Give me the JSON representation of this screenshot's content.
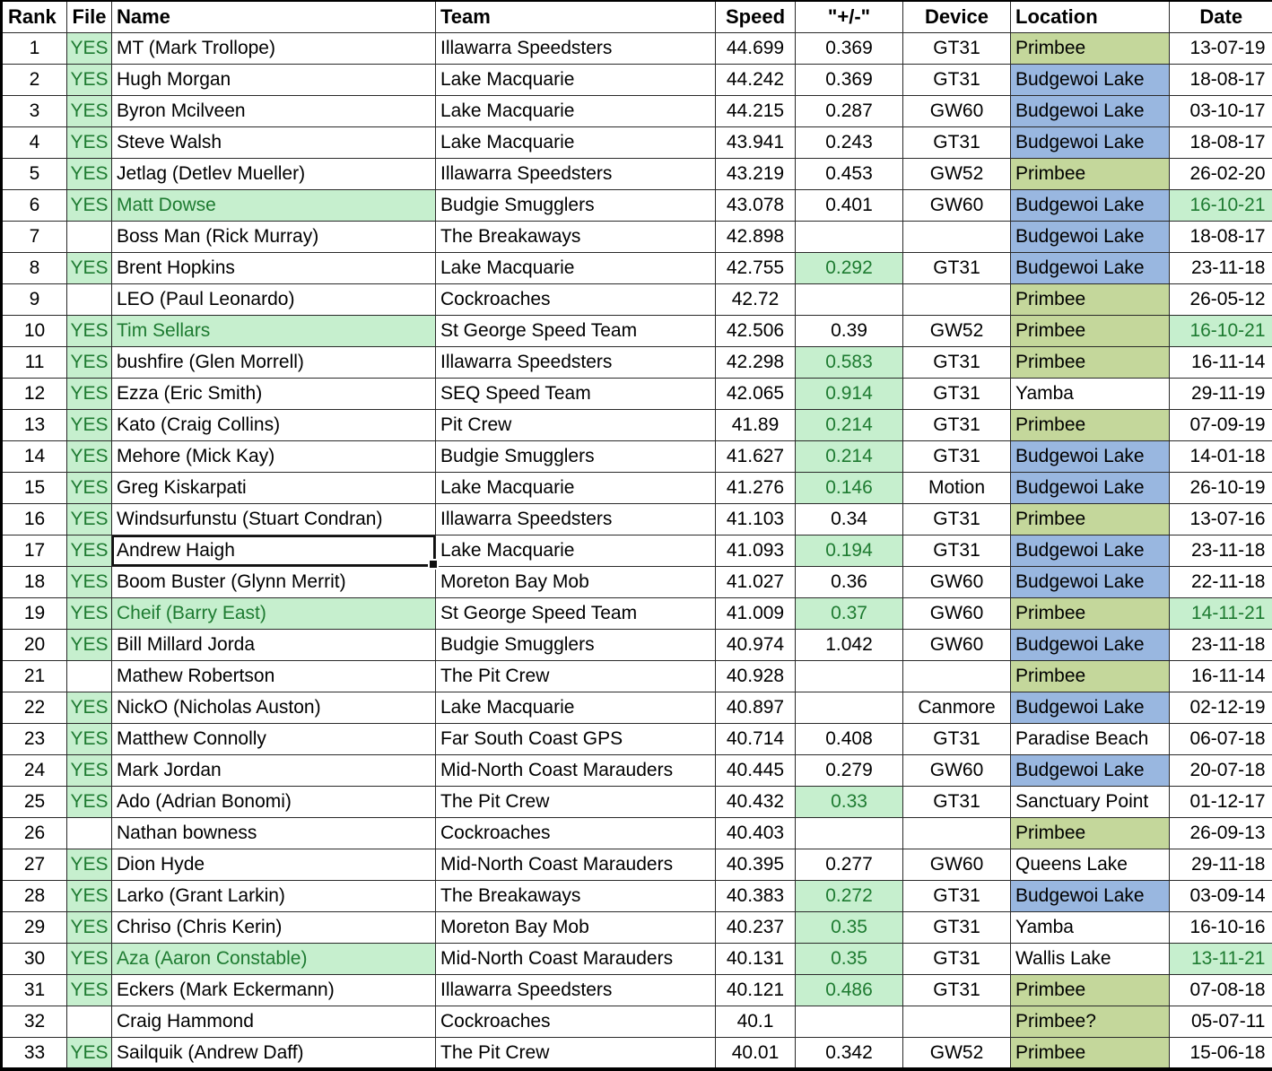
{
  "colors": {
    "grid_line": "#2a2a2a",
    "highlight_green_background": "#c6efce",
    "highlight_green_text": "#1e7b31",
    "location_olive_background": "#c4d79b",
    "location_blue_background": "#99b7e0"
  },
  "selection": {
    "selected_row_rank": "17",
    "selected_column": "name",
    "selected_value": "Andrew Haigh"
  },
  "table": {
    "columns": [
      {
        "key": "rank",
        "label": "Rank"
      },
      {
        "key": "file",
        "label": "File"
      },
      {
        "key": "name",
        "label": "Name"
      },
      {
        "key": "team",
        "label": "Team"
      },
      {
        "key": "speed",
        "label": "Speed"
      },
      {
        "key": "plusminus",
        "label": "\"+/-\""
      },
      {
        "key": "device",
        "label": "Device"
      },
      {
        "key": "location",
        "label": "Location"
      },
      {
        "key": "date",
        "label": "Date"
      }
    ],
    "rows": [
      {
        "rank": "1",
        "file": "YES",
        "name": "MT (Mark Trollope)",
        "team": "Illawarra Speedsters",
        "speed": "44.699",
        "plusminus": "0.369",
        "device": "GT31",
        "location": "Primbee",
        "location_color": "olive",
        "date": "13-07-19"
      },
      {
        "rank": "2",
        "file": "YES",
        "name": "Hugh Morgan",
        "team": "Lake Macquarie",
        "speed": "44.242",
        "plusminus": "0.369",
        "device": "GT31",
        "location": "Budgewoi Lake",
        "location_color": "blue",
        "date": "18-08-17"
      },
      {
        "rank": "3",
        "file": "YES",
        "name": "Byron Mcilveen",
        "team": "Lake Macquarie",
        "speed": "44.215",
        "plusminus": "0.287",
        "device": "GW60",
        "location": "Budgewoi Lake",
        "location_color": "blue",
        "date": "03-10-17"
      },
      {
        "rank": "4",
        "file": "YES",
        "name": "Steve Walsh",
        "team": "Lake Macquarie",
        "speed": "43.941",
        "plusminus": "0.243",
        "device": "GT31",
        "location": "Budgewoi Lake",
        "location_color": "blue",
        "date": "18-08-17"
      },
      {
        "rank": "5",
        "file": "YES",
        "name": "Jetlag (Detlev Mueller)",
        "team": "Illawarra Speedsters",
        "speed": "43.219",
        "plusminus": "0.453",
        "device": "GW52",
        "location": "Primbee",
        "location_color": "olive",
        "date": "26-02-20"
      },
      {
        "rank": "6",
        "file": "YES",
        "name": "Matt Dowse",
        "team": "Budgie Smugglers",
        "speed": "43.078",
        "plusminus": "0.401",
        "device": "GW60",
        "location": "Budgewoi Lake",
        "location_color": "blue",
        "date": "16-10-21",
        "name_highlight": true,
        "date_highlight": true
      },
      {
        "rank": "7",
        "file": "",
        "name": "Boss Man (Rick Murray)",
        "team": "The Breakaways",
        "speed": "42.898",
        "plusminus": "",
        "device": "",
        "location": "Budgewoi Lake",
        "location_color": "blue",
        "date": "18-08-17"
      },
      {
        "rank": "8",
        "file": "YES",
        "name": "Brent Hopkins",
        "team": "Lake Macquarie",
        "speed": "42.755",
        "plusminus": "0.292",
        "device": "GT31",
        "location": "Budgewoi Lake",
        "location_color": "blue",
        "date": "23-11-18",
        "pm_highlight": true
      },
      {
        "rank": "9",
        "file": "",
        "name": "LEO (Paul Leonardo)",
        "team": "Cockroaches",
        "speed": "42.72",
        "plusminus": "",
        "device": "",
        "location": "Primbee",
        "location_color": "olive",
        "date": "26-05-12"
      },
      {
        "rank": "10",
        "file": "YES",
        "name": "Tim Sellars",
        "team": "St George Speed Team",
        "speed": "42.506",
        "plusminus": "0.39",
        "device": "GW52",
        "location": "Primbee",
        "location_color": "olive",
        "date": "16-10-21",
        "name_highlight": true,
        "date_highlight": true
      },
      {
        "rank": "11",
        "file": "YES",
        "name": "bushfire (Glen Morrell)",
        "team": "Illawarra Speedsters",
        "speed": "42.298",
        "plusminus": "0.583",
        "device": "GT31",
        "location": "Primbee",
        "location_color": "olive",
        "date": "16-11-14",
        "pm_highlight": true
      },
      {
        "rank": "12",
        "file": "YES",
        "name": "Ezza (Eric Smith)",
        "team": "SEQ Speed Team",
        "speed": "42.065",
        "plusminus": "0.914",
        "device": "GT31",
        "location": "Yamba",
        "location_color": "none",
        "date": "29-11-19",
        "pm_highlight": true
      },
      {
        "rank": "13",
        "file": "YES",
        "name": "Kato (Craig Collins)",
        "team": "Pit Crew",
        "speed": "41.89",
        "plusminus": "0.214",
        "device": "GT31",
        "location": "Primbee",
        "location_color": "olive",
        "date": "07-09-19",
        "pm_highlight": true
      },
      {
        "rank": "14",
        "file": "YES",
        "name": "Mehore (Mick Kay)",
        "team": "Budgie Smugglers",
        "speed": "41.627",
        "plusminus": "0.214",
        "device": "GT31",
        "location": "Budgewoi Lake",
        "location_color": "blue",
        "date": "14-01-18",
        "pm_highlight": true
      },
      {
        "rank": "15",
        "file": "YES",
        "name": "Greg Kiskarpati",
        "team": "Lake Macquarie",
        "speed": "41.276",
        "plusminus": "0.146",
        "device": "Motion",
        "location": "Budgewoi Lake",
        "location_color": "blue",
        "date": "26-10-19",
        "pm_highlight": true
      },
      {
        "rank": "16",
        "file": "YES",
        "name": "Windsurfunstu (Stuart Condran)",
        "team": "Illawarra Speedsters",
        "speed": "41.103",
        "plusminus": "0.34",
        "device": "GT31",
        "location": "Primbee",
        "location_color": "olive",
        "date": "13-07-16"
      },
      {
        "rank": "17",
        "file": "YES",
        "name": "Andrew Haigh",
        "team": "Lake Macquarie",
        "speed": "41.093",
        "plusminus": "0.194",
        "device": "GT31",
        "location": "Budgewoi Lake",
        "location_color": "blue",
        "date": "23-11-18",
        "pm_highlight": true,
        "selected": true
      },
      {
        "rank": "18",
        "file": "YES",
        "name": "Boom Buster (Glynn Merrit)",
        "team": "Moreton Bay Mob",
        "speed": "41.027",
        "plusminus": "0.36",
        "device": "GW60",
        "location": "Budgewoi Lake",
        "location_color": "blue",
        "date": "22-11-18"
      },
      {
        "rank": "19",
        "file": "YES",
        "name": "Cheif (Barry East)",
        "team": "St George Speed Team",
        "speed": "41.009",
        "plusminus": "0.37",
        "device": "GW60",
        "location": "Primbee",
        "location_color": "olive",
        "date": "14-11-21",
        "name_highlight": true,
        "pm_highlight": true,
        "date_highlight": true
      },
      {
        "rank": "20",
        "file": "YES",
        "name": "Bill Millard Jorda",
        "team": "Budgie Smugglers",
        "speed": "40.974",
        "plusminus": "1.042",
        "device": "GW60",
        "location": "Budgewoi Lake",
        "location_color": "blue",
        "date": "23-11-18"
      },
      {
        "rank": "21",
        "file": "",
        "name": "Mathew Robertson",
        "team": "The Pit Crew",
        "speed": "40.928",
        "plusminus": "",
        "device": "",
        "location": "Primbee",
        "location_color": "olive",
        "date": "16-11-14"
      },
      {
        "rank": "22",
        "file": "YES",
        "name": "NickO (Nicholas Auston)",
        "team": "Lake Macquarie",
        "speed": "40.897",
        "plusminus": "",
        "device": "Canmore",
        "location": "Budgewoi Lake",
        "location_color": "blue",
        "date": "02-12-19"
      },
      {
        "rank": "23",
        "file": "YES",
        "name": "Matthew Connolly",
        "team": "Far South Coast GPS",
        "speed": "40.714",
        "plusminus": "0.408",
        "device": "GT31",
        "location": "Paradise Beach",
        "location_color": "none",
        "date": "06-07-18"
      },
      {
        "rank": "24",
        "file": "YES",
        "name": "Mark Jordan",
        "team": "Mid-North Coast Marauders",
        "speed": "40.445",
        "plusminus": "0.279",
        "device": "GW60",
        "location": "Budgewoi Lake",
        "location_color": "blue",
        "date": "20-07-18"
      },
      {
        "rank": "25",
        "file": "YES",
        "name": "Ado (Adrian Bonomi)",
        "team": "The Pit Crew",
        "speed": "40.432",
        "plusminus": "0.33",
        "device": "GT31",
        "location": "Sanctuary Point",
        "location_color": "none",
        "date": "01-12-17",
        "pm_highlight": true
      },
      {
        "rank": "26",
        "file": "",
        "name": "Nathan bowness",
        "team": "Cockroaches",
        "speed": "40.403",
        "plusminus": "",
        "device": "",
        "location": "Primbee",
        "location_color": "olive",
        "date": "26-09-13"
      },
      {
        "rank": "27",
        "file": "YES",
        "name": "Dion Hyde",
        "team": "Mid-North Coast Marauders",
        "speed": "40.395",
        "plusminus": "0.277",
        "device": "GW60",
        "location": "Queens Lake",
        "location_color": "none",
        "date": "29-11-18"
      },
      {
        "rank": "28",
        "file": "YES",
        "name": "Larko (Grant Larkin)",
        "team": "The Breakaways",
        "speed": "40.383",
        "plusminus": "0.272",
        "device": "GT31",
        "location": "Budgewoi Lake",
        "location_color": "blue",
        "date": "03-09-14",
        "pm_highlight": true
      },
      {
        "rank": "29",
        "file": "YES",
        "name": "Chriso (Chris Kerin)",
        "team": "Moreton Bay Mob",
        "speed": "40.237",
        "plusminus": "0.35",
        "device": "GT31",
        "location": "Yamba",
        "location_color": "none",
        "date": "16-10-16",
        "pm_highlight": true
      },
      {
        "rank": "30",
        "file": "YES",
        "name": "Aza (Aaron Constable)",
        "team": "Mid-North Coast Marauders",
        "speed": "40.131",
        "plusminus": "0.35",
        "device": "GT31",
        "location": "Wallis Lake",
        "location_color": "none",
        "date": "13-11-21",
        "name_highlight": true,
        "pm_highlight": true,
        "date_highlight": true
      },
      {
        "rank": "31",
        "file": "YES",
        "name": "Eckers (Mark Eckermann)",
        "team": "Illawarra Speedsters",
        "speed": "40.121",
        "plusminus": "0.486",
        "device": "GT31",
        "location": "Primbee",
        "location_color": "olive",
        "date": "07-08-18",
        "pm_highlight": true
      },
      {
        "rank": "32",
        "file": "",
        "name": "Craig Hammond",
        "team": "Cockroaches",
        "speed": "40.1",
        "plusminus": "",
        "device": "",
        "location": "Primbee?",
        "location_color": "olive",
        "date": "05-07-11"
      },
      {
        "rank": "33",
        "file": "YES",
        "name": "Sailquik (Andrew Daff)",
        "team": "The Pit Crew",
        "speed": "40.01",
        "plusminus": "0.342",
        "device": "GW52",
        "location": "Primbee",
        "location_color": "olive",
        "date": "15-06-18"
      }
    ]
  }
}
